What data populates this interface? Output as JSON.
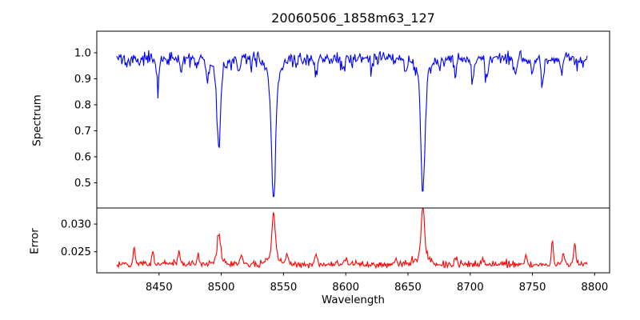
{
  "figure": {
    "title": "20060506_1858m63_127",
    "background": "#ffffff",
    "spine_color": "#000000"
  },
  "chart_data": {
    "type": "line",
    "title": "20060506_1858m63_127",
    "xlabel": "Wavelength",
    "grid": false,
    "legend": null,
    "xlim": [
      8400,
      8812
    ],
    "x_range": [
      8416,
      8794
    ],
    "n_points": 560,
    "xticks": [
      {
        "v": 8450,
        "label": "8450"
      },
      {
        "v": 8500,
        "label": "8500"
      },
      {
        "v": 8550,
        "label": "8550"
      },
      {
        "v": 8600,
        "label": "8600"
      },
      {
        "v": 8650,
        "label": "8650"
      },
      {
        "v": 8700,
        "label": "8700"
      },
      {
        "v": 8750,
        "label": "8750"
      },
      {
        "v": 8800,
        "label": "8800"
      }
    ],
    "panels": [
      {
        "name": "spectrum",
        "ylabel": "Spectrum",
        "line_color": "#0000ff",
        "ylim": [
          0.403,
          1.083
        ],
        "yticks": [
          {
            "v": 1.0,
            "label": "1.0"
          },
          {
            "v": 0.9,
            "label": "0.9"
          },
          {
            "v": 0.8,
            "label": "0.8"
          },
          {
            "v": 0.7,
            "label": "0.7"
          },
          {
            "v": 0.6,
            "label": "0.6"
          },
          {
            "v": 0.5,
            "label": "0.5"
          }
        ],
        "continuum_level": 0.978,
        "noise": {
          "sigma": 0.012,
          "dip_probability": 0.08,
          "dip_max": 0.05
        },
        "observed_minima": [
          {
            "wavelength": 8498,
            "flux": 0.63
          },
          {
            "wavelength": 8542,
            "flux": 0.44
          },
          {
            "wavelength": 8662,
            "flux": 0.48
          }
        ],
        "gaussian_components": [
          {
            "center": 8424,
            "min_flux": 0.935,
            "sigma": 1.0
          },
          {
            "center": 8434,
            "min_flux": 0.95,
            "sigma": 0.9
          },
          {
            "center": 8449,
            "min_flux": 0.895,
            "sigma": 1.0
          },
          {
            "center": 8468,
            "min_flux": 0.925,
            "sigma": 1.0
          },
          {
            "center": 8480,
            "min_flux": 0.945,
            "sigma": 0.9
          },
          {
            "center": 8489,
            "min_flux": 0.905,
            "sigma": 1.1
          },
          {
            "center": 8498,
            "min_flux": 0.68,
            "sigma": 1.4
          },
          {
            "center": 8498,
            "min_flux": 0.93,
            "sigma": 4.0
          },
          {
            "center": 8514,
            "min_flux": 0.925,
            "sigma": 1.0
          },
          {
            "center": 8542,
            "min_flux": 0.52,
            "sigma": 1.7
          },
          {
            "center": 8542,
            "min_flux": 0.9,
            "sigma": 5.0
          },
          {
            "center": 8560,
            "min_flux": 0.945,
            "sigma": 0.9
          },
          {
            "center": 8576,
            "min_flux": 0.915,
            "sigma": 1.1
          },
          {
            "center": 8598,
            "min_flux": 0.935,
            "sigma": 1.0
          },
          {
            "center": 8621,
            "min_flux": 0.935,
            "sigma": 1.0
          },
          {
            "center": 8648,
            "min_flux": 0.925,
            "sigma": 1.0
          },
          {
            "center": 8662,
            "min_flux": 0.545,
            "sigma": 1.6
          },
          {
            "center": 8662,
            "min_flux": 0.91,
            "sigma": 5.0
          },
          {
            "center": 8675,
            "min_flux": 0.935,
            "sigma": 0.9
          },
          {
            "center": 8688,
            "min_flux": 0.905,
            "sigma": 1.0
          },
          {
            "center": 8702,
            "min_flux": 0.885,
            "sigma": 1.0
          },
          {
            "center": 8713,
            "min_flux": 0.925,
            "sigma": 0.9
          },
          {
            "center": 8736,
            "min_flux": 0.915,
            "sigma": 1.0
          },
          {
            "center": 8750,
            "min_flux": 0.925,
            "sigma": 0.9
          },
          {
            "center": 8758,
            "min_flux": 0.885,
            "sigma": 1.0
          },
          {
            "center": 8773,
            "min_flux": 0.915,
            "sigma": 0.9
          }
        ]
      },
      {
        "name": "error",
        "ylabel": "Error",
        "line_color": "#ff0000",
        "ylim": [
          0.0212,
          0.0329
        ],
        "yticks": [
          {
            "v": 0.03,
            "label": "0.030"
          },
          {
            "v": 0.025,
            "label": "0.025"
          }
        ],
        "baseline_level": 0.0227,
        "noise": {
          "sigma": 0.00028,
          "spike_probability": 0.05,
          "spike_max": 0.001
        },
        "observed_peaks": [
          {
            "wavelength": 8430,
            "value": 0.0262
          },
          {
            "wavelength": 8498,
            "value": 0.0278
          },
          {
            "wavelength": 8542,
            "value": 0.0317
          },
          {
            "wavelength": 8662,
            "value": 0.0327
          },
          {
            "wavelength": 8766,
            "value": 0.0273
          },
          {
            "wavelength": 8784,
            "value": 0.0268
          }
        ],
        "gaussian_components": [
          {
            "center": 8430,
            "peak_value": 0.026,
            "sigma": 0.8
          },
          {
            "center": 8445,
            "peak_value": 0.0247,
            "sigma": 0.8
          },
          {
            "center": 8466,
            "peak_value": 0.0254,
            "sigma": 0.8
          },
          {
            "center": 8481,
            "peak_value": 0.0245,
            "sigma": 0.8
          },
          {
            "center": 8498,
            "peak_value": 0.027,
            "sigma": 1.1
          },
          {
            "center": 8498,
            "peak_value": 0.0238,
            "sigma": 4.0
          },
          {
            "center": 8516,
            "peak_value": 0.0244,
            "sigma": 0.9
          },
          {
            "center": 8542,
            "peak_value": 0.0305,
            "sigma": 1.3
          },
          {
            "center": 8542,
            "peak_value": 0.0242,
            "sigma": 5.0
          },
          {
            "center": 8553,
            "peak_value": 0.0246,
            "sigma": 1.0
          },
          {
            "center": 8576,
            "peak_value": 0.0244,
            "sigma": 0.9
          },
          {
            "center": 8600,
            "peak_value": 0.024,
            "sigma": 0.9
          },
          {
            "center": 8640,
            "peak_value": 0.024,
            "sigma": 0.9
          },
          {
            "center": 8662,
            "peak_value": 0.0312,
            "sigma": 1.3
          },
          {
            "center": 8662,
            "peak_value": 0.0243,
            "sigma": 5.0
          },
          {
            "center": 8688,
            "peak_value": 0.0242,
            "sigma": 0.9
          },
          {
            "center": 8710,
            "peak_value": 0.0241,
            "sigma": 0.8
          },
          {
            "center": 8745,
            "peak_value": 0.0243,
            "sigma": 0.8
          },
          {
            "center": 8766,
            "peak_value": 0.027,
            "sigma": 0.8
          },
          {
            "center": 8775,
            "peak_value": 0.0246,
            "sigma": 0.8
          },
          {
            "center": 8784,
            "peak_value": 0.0265,
            "sigma": 0.8
          }
        ]
      }
    ]
  }
}
